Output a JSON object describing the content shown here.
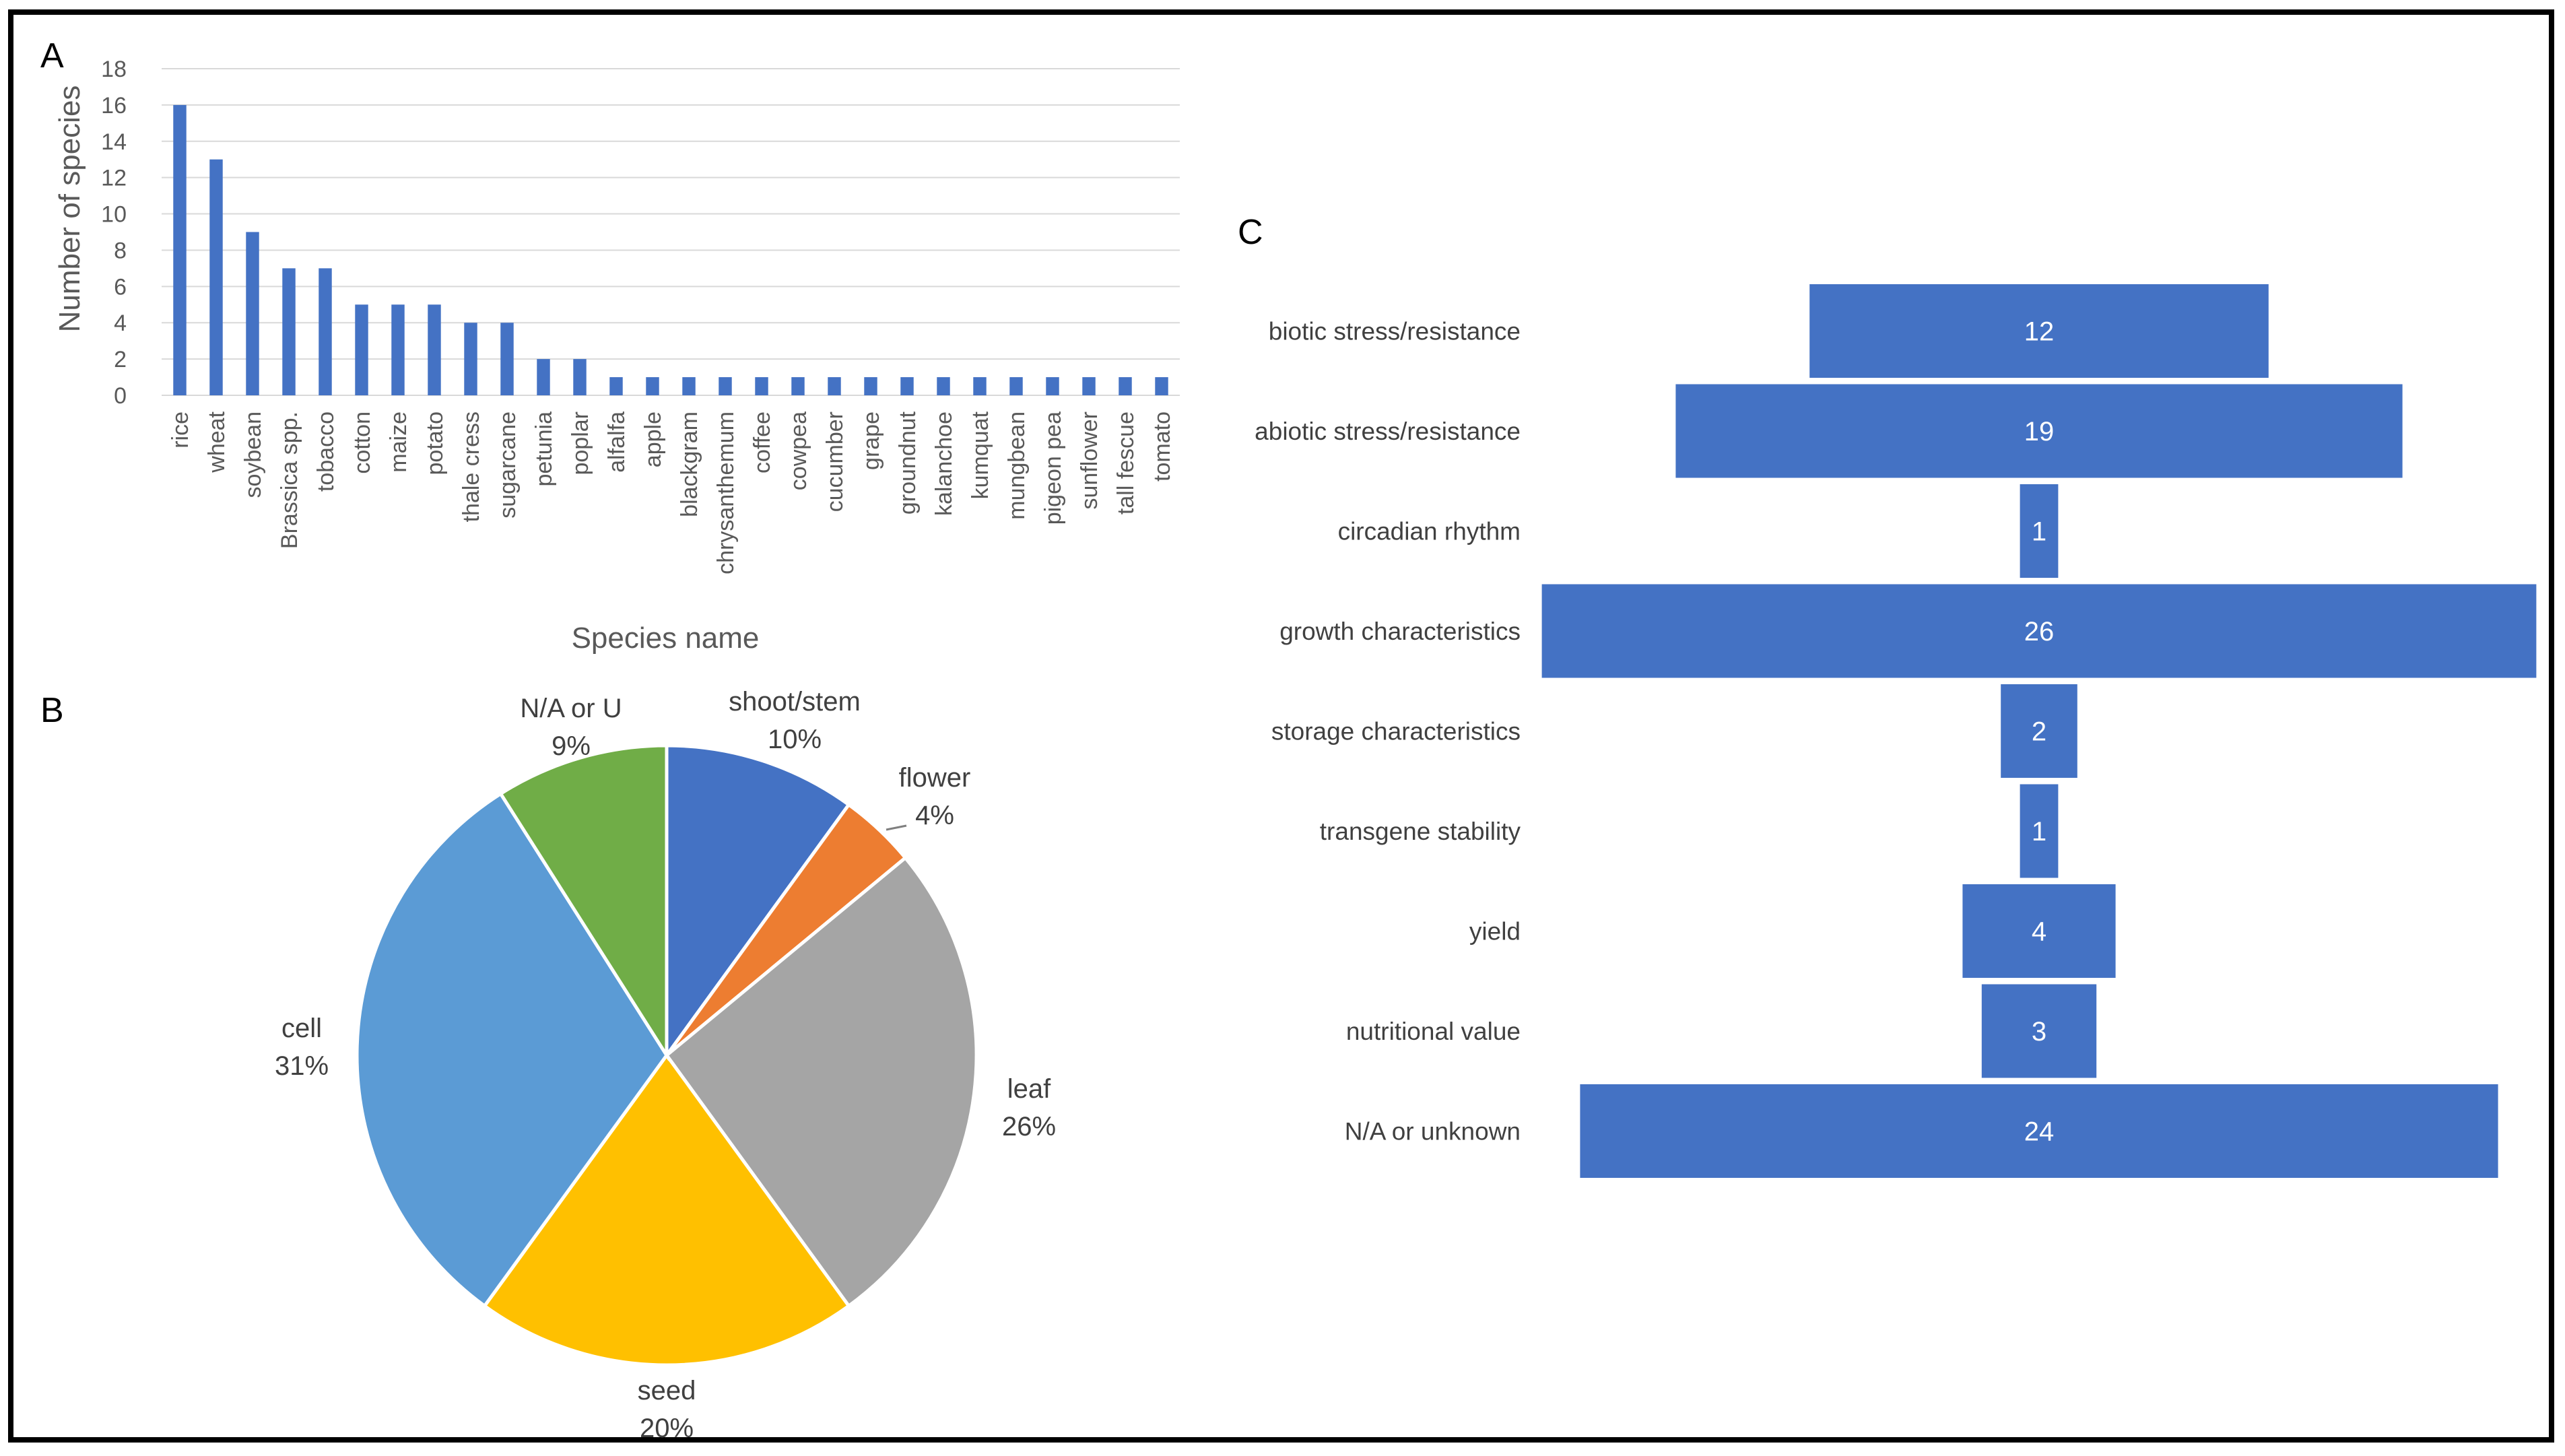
{
  "chart_data": [
    {
      "panel": "A",
      "type": "bar",
      "ylabel": "Number of species",
      "xlabel": "Species name",
      "ylim": [
        0,
        18
      ],
      "yticks": [
        0,
        2,
        4,
        6,
        8,
        10,
        12,
        14,
        16,
        18
      ],
      "grid": true,
      "bar_color": "#4472C4",
      "categories": [
        "rice",
        "wheat",
        "soybean",
        "Brassica spp.",
        "tobacco",
        "cotton",
        "maize",
        "potato",
        "thale cress",
        "sugarcane",
        "petunia",
        "poplar",
        "alfalfa",
        "apple",
        "blackgram",
        "chrysanthemum",
        "coffee",
        "cowpea",
        "cucumber",
        "grape",
        "groundnut",
        "kalanchoe",
        "kumquat",
        "mungbean",
        "pigeon pea",
        "sunflower",
        "tall fescue",
        "tomato"
      ],
      "values": [
        16,
        13,
        9,
        7,
        7,
        5,
        5,
        5,
        4,
        4,
        2,
        2,
        1,
        1,
        1,
        1,
        1,
        1,
        1,
        1,
        1,
        1,
        1,
        1,
        1,
        1,
        1,
        1
      ]
    },
    {
      "panel": "B",
      "type": "pie",
      "slices": [
        {
          "name": "shoot/stem",
          "value": 10,
          "label": "10%",
          "color": "#4472C4"
        },
        {
          "name": "flower",
          "value": 4,
          "label": "4%",
          "color": "#ED7D31"
        },
        {
          "name": "leaf",
          "value": 26,
          "label": "26%",
          "color": "#A5A5A5"
        },
        {
          "name": "seed",
          "value": 20,
          "label": "20%",
          "color": "#FFC000"
        },
        {
          "name": "cell",
          "value": 31,
          "label": "31%",
          "color": "#5B9BD5"
        },
        {
          "name": "N/A or U",
          "value": 9,
          "label": "9%",
          "color": "#70AD47"
        }
      ]
    },
    {
      "panel": "C",
      "type": "bar",
      "orientation": "horizontal-centered",
      "bar_color": "#4472C4",
      "categories": [
        "biotic stress/resistance",
        "abiotic stress/resistance",
        "circadian rhythm",
        "growth characteristics",
        "storage characteristics",
        "transgene stability",
        "yield",
        "nutritional value",
        "N/A or unknown"
      ],
      "values": [
        12,
        19,
        1,
        26,
        2,
        1,
        4,
        3,
        24
      ]
    }
  ]
}
